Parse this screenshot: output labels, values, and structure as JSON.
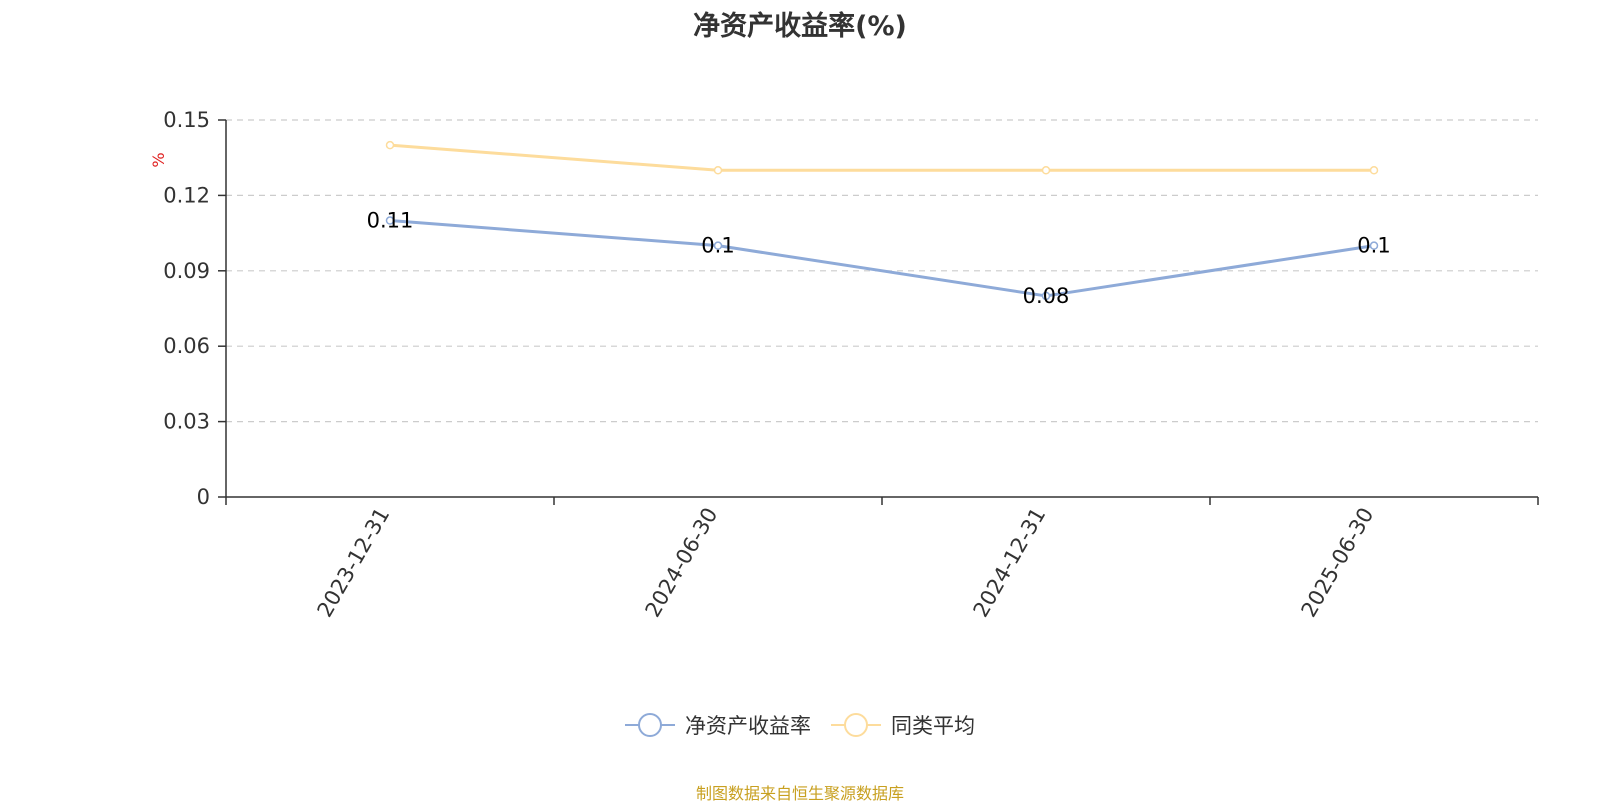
{
  "chart_data": {
    "type": "line",
    "title": "净资产收益率(%)",
    "ylabel": "%",
    "xlabel": "",
    "categories": [
      "2023-12-31",
      "2024-06-30",
      "2024-12-31",
      "2025-06-30"
    ],
    "ylim": [
      0,
      0.15
    ],
    "yticks": [
      "0",
      "0.03",
      "0.06",
      "0.09",
      "0.12",
      "0.15"
    ],
    "grid": true,
    "legend_position": "bottom",
    "series": [
      {
        "name": "净资产收益率",
        "values": [
          0.11,
          0.1,
          0.08,
          0.1
        ],
        "labels": [
          "0.11",
          "0.1",
          "0.08",
          "0.1"
        ],
        "color": "#8eaad8",
        "show_labels": true
      },
      {
        "name": "同类平均",
        "values": [
          0.14,
          0.13,
          0.13,
          0.13
        ],
        "color": "#fddc9c",
        "show_labels": false
      }
    ]
  },
  "legend": {
    "items": [
      "净资产收益率",
      "同类平均"
    ]
  },
  "source_note": "制图数据来自恒生聚源数据库",
  "colors": {
    "axis": "#333333",
    "grid": "#cccccc",
    "ylabel": "#e02020",
    "source": "#c8a020"
  }
}
